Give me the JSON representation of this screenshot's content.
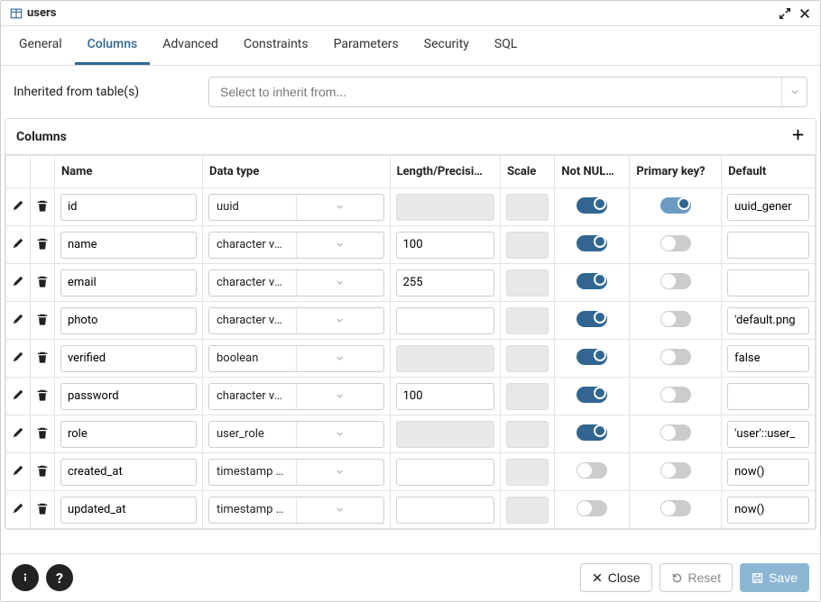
{
  "title": "users",
  "tabs": [
    "General",
    "Columns",
    "Advanced",
    "Constraints",
    "Parameters",
    "Security",
    "SQL"
  ],
  "active_tab": "Columns",
  "inherit_label": "Inherited from table(s)",
  "inherit_placeholder": "Select to inherit from...",
  "section_title": "Columns",
  "headers": {
    "name": "Name",
    "data_type": "Data type",
    "length": "Length/Precisi…",
    "scale": "Scale",
    "not_null": "Not NUL…",
    "primary_key": "Primary key?",
    "default": "Default"
  },
  "rows": [
    {
      "name": "id",
      "type": "uuid",
      "len": "",
      "len_disabled": true,
      "scale": "",
      "scale_disabled": true,
      "not_null": true,
      "pk": true,
      "pk_light": true,
      "default": "uuid_gener"
    },
    {
      "name": "name",
      "type": "character varying",
      "len": "100",
      "len_disabled": false,
      "scale": "",
      "scale_disabled": true,
      "not_null": true,
      "pk": false,
      "pk_light": false,
      "default": ""
    },
    {
      "name": "email",
      "type": "character varying",
      "len": "255",
      "len_disabled": false,
      "scale": "",
      "scale_disabled": true,
      "not_null": true,
      "pk": false,
      "pk_light": false,
      "default": ""
    },
    {
      "name": "photo",
      "type": "character varying",
      "len": "",
      "len_disabled": false,
      "scale": "",
      "scale_disabled": true,
      "not_null": true,
      "pk": false,
      "pk_light": false,
      "default": "'default.png"
    },
    {
      "name": "verified",
      "type": "boolean",
      "len": "",
      "len_disabled": true,
      "scale": "",
      "scale_disabled": true,
      "not_null": true,
      "pk": false,
      "pk_light": false,
      "default": "false"
    },
    {
      "name": "password",
      "type": "character varying",
      "len": "100",
      "len_disabled": false,
      "scale": "",
      "scale_disabled": true,
      "not_null": true,
      "pk": false,
      "pk_light": false,
      "default": ""
    },
    {
      "name": "role",
      "type": "user_role",
      "len": "",
      "len_disabled": true,
      "scale": "",
      "scale_disabled": true,
      "not_null": true,
      "pk": false,
      "pk_light": false,
      "default": "'user'::user_"
    },
    {
      "name": "created_at",
      "type": "timestamp with time …",
      "len": "",
      "len_disabled": false,
      "scale": "",
      "scale_disabled": true,
      "not_null": false,
      "pk": false,
      "pk_light": false,
      "default": "now()"
    },
    {
      "name": "updated_at",
      "type": "timestamp with time …",
      "len": "",
      "len_disabled": false,
      "scale": "",
      "scale_disabled": true,
      "not_null": false,
      "pk": false,
      "pk_light": false,
      "default": "now()"
    }
  ],
  "footer": {
    "close": "Close",
    "reset": "Reset",
    "save": "Save"
  },
  "colors": {
    "accent": "#326690",
    "accent_light": "#6b9bc3",
    "save_bg": "#8db6d4"
  }
}
